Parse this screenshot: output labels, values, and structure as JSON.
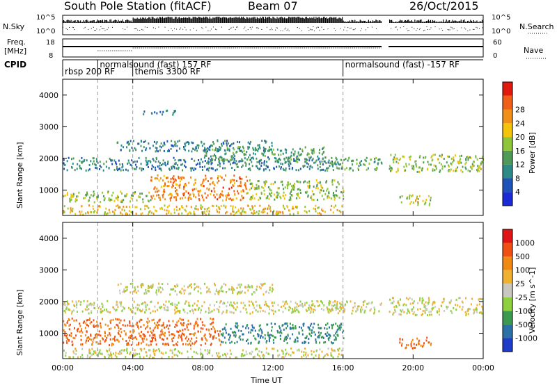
{
  "header": {
    "station": "South Pole Station (fitACF)",
    "beam": "Beam 07",
    "date": "26/Oct/2015"
  },
  "strips": {
    "nsky_label": "N.Sky",
    "nsearch_label": "N.Search",
    "nsky_ticks": [
      "10^5",
      "10^0"
    ],
    "nsearch_ticks": [
      "10^5",
      "10^0"
    ],
    "freq_label": [
      "Freq.",
      "[MHz]"
    ],
    "freq_ticks": [
      "18",
      "8"
    ],
    "nave_label": "Nave",
    "nave_ticks": [
      "60",
      "0"
    ],
    "cpid_label": "CPID",
    "cpid_segments": [
      {
        "label": "rbsp 200 RF",
        "start": "00:00",
        "end": "02:00",
        "row": 1
      },
      {
        "label": "normalsound (fast) 157 RF",
        "start": "02:00",
        "end": "04:00",
        "row": 0
      },
      {
        "label": "themis 3300 RF",
        "start": "04:00",
        "end": "16:00",
        "row": 1
      },
      {
        "label": "normalsound (fast) -157 RF",
        "start": "16:00",
        "end": "24:00",
        "row": 0
      }
    ]
  },
  "chart_data": [
    {
      "type": "heatmap",
      "title": "",
      "xlabel": "Time UT",
      "ylabel": "Slant Range [km]",
      "xlim": [
        "00:00",
        "24:00"
      ],
      "ylim": [
        200,
        4500
      ],
      "x_ticks": [
        "00:00",
        "04:00",
        "08:00",
        "12:00",
        "16:00",
        "20:00",
        "00:00"
      ],
      "y_ticks": [
        1000,
        2000,
        3000,
        4000
      ],
      "colorbar_label": "Power [dB]",
      "colorbar_ticks": [
        4,
        8,
        12,
        16,
        20,
        24,
        28
      ],
      "colorbar_colors": [
        "#1a2bd6",
        "#1e54b8",
        "#2e8a86",
        "#4f9a58",
        "#8ec63a",
        "#f2c40c",
        "#f09018",
        "#f06018",
        "#e11a10"
      ],
      "data_gap_hours": [
        18.2,
        18.6
      ],
      "scatter_bands": [
        {
          "start_h": 0.0,
          "end_h": 16.0,
          "range_km": [
            1650,
            2050
          ],
          "value": 8
        },
        {
          "start_h": 3.0,
          "end_h": 12.0,
          "range_km": [
            2250,
            2600
          ],
          "value": 8
        },
        {
          "start_h": 8.0,
          "end_h": 15.0,
          "range_km": [
            1900,
            2400
          ],
          "value": 10
        },
        {
          "start_h": 15.0,
          "end_h": 18.2,
          "range_km": [
            1650,
            2050
          ],
          "value": 12
        },
        {
          "start_h": 18.6,
          "end_h": 24.0,
          "range_km": [
            1600,
            2150
          ],
          "value": 14
        },
        {
          "start_h": 0.0,
          "end_h": 5.0,
          "range_km": [
            650,
            1000
          ],
          "value": 14
        },
        {
          "start_h": 5.0,
          "end_h": 10.5,
          "range_km": [
            700,
            1500
          ],
          "value": 22
        },
        {
          "start_h": 10.5,
          "end_h": 16.0,
          "range_km": [
            700,
            1350
          ],
          "value": 14
        },
        {
          "start_h": 19.2,
          "end_h": 21.0,
          "range_km": [
            550,
            900
          ],
          "value": 16
        },
        {
          "start_h": 4.5,
          "end_h": 6.5,
          "range_km": [
            3400,
            3550
          ],
          "value": 8
        },
        {
          "start_h": 0.0,
          "end_h": 16.0,
          "range_km": [
            250,
            550
          ],
          "value": 18
        }
      ]
    },
    {
      "type": "heatmap",
      "title": "",
      "xlabel": "Time UT",
      "ylabel": "Slant Range [km]",
      "xlim": [
        "00:00",
        "24:00"
      ],
      "ylim": [
        200,
        4500
      ],
      "x_ticks": [
        "00:00",
        "04:00",
        "08:00",
        "12:00",
        "16:00",
        "20:00",
        "00:00"
      ],
      "y_ticks": [
        1000,
        2000,
        3000,
        4000
      ],
      "colorbar_label": "Velocity [m s^-1]",
      "colorbar_ticks": [
        1000,
        500,
        100,
        25,
        -25,
        -100,
        -500,
        -1000
      ],
      "colorbar_colors": [
        "#1e3cc8",
        "#2d70a8",
        "#3c9a50",
        "#8fd040",
        "#c8c8c0",
        "#f0b030",
        "#f08a14",
        "#f05014",
        "#e01414"
      ],
      "data_gap_hours": [
        18.2,
        18.6
      ],
      "scatter_bands": [
        {
          "start_h": 0.0,
          "end_h": 16.0,
          "range_km": [
            1650,
            2050
          ],
          "value": 0
        },
        {
          "start_h": 3.0,
          "end_h": 12.0,
          "range_km": [
            2250,
            2600
          ],
          "value": 0
        },
        {
          "start_h": 15.0,
          "end_h": 18.2,
          "range_km": [
            1650,
            2050
          ],
          "value": 0
        },
        {
          "start_h": 18.6,
          "end_h": 24.0,
          "range_km": [
            1600,
            2150
          ],
          "value": 0
        },
        {
          "start_h": 0.0,
          "end_h": 9.0,
          "range_km": [
            650,
            1500
          ],
          "value": -300
        },
        {
          "start_h": 9.0,
          "end_h": 16.0,
          "range_km": [
            700,
            1350
          ],
          "value": 300
        },
        {
          "start_h": 19.2,
          "end_h": 21.0,
          "range_km": [
            550,
            900
          ],
          "value": -300
        },
        {
          "start_h": 0.0,
          "end_h": 16.0,
          "range_km": [
            250,
            550
          ],
          "value": 0
        }
      ]
    }
  ]
}
